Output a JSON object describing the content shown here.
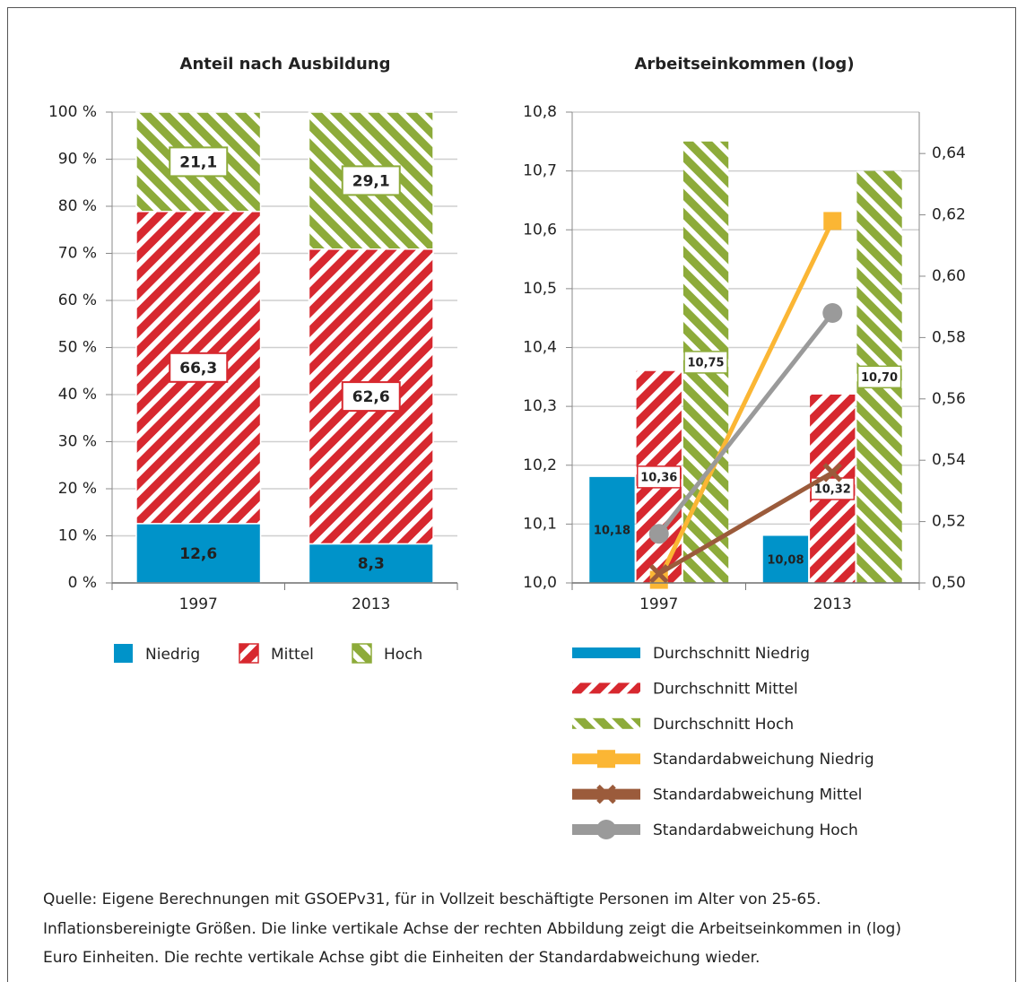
{
  "chart_data": [
    {
      "type": "stacked_bar",
      "title": "Anteil nach Ausbildung",
      "categories": [
        "1997",
        "2013"
      ],
      "series": [
        {
          "name": "Niedrig",
          "color": "#0093c9",
          "hatch": "solid",
          "values": [
            12.6,
            8.3
          ],
          "value_labels": [
            "12,6",
            "8,3"
          ]
        },
        {
          "name": "Mittel",
          "color": "#d7282f",
          "hatch": "diagonal",
          "values": [
            66.3,
            62.6
          ],
          "value_labels": [
            "66,3",
            "62,6"
          ]
        },
        {
          "name": "Hoch",
          "color": "#8dab3a",
          "hatch": "anti-diagonal",
          "values": [
            21.1,
            29.1
          ],
          "value_labels": [
            "21,1",
            "29,1"
          ]
        }
      ],
      "ylim": [
        0,
        100
      ],
      "yticks": [
        {
          "value": 0,
          "label": "0 %"
        },
        {
          "value": 10,
          "label": "10 %"
        },
        {
          "value": 20,
          "label": "20 %"
        },
        {
          "value": 30,
          "label": "30 %"
        },
        {
          "value": 40,
          "label": "40 %"
        },
        {
          "value": 50,
          "label": "50 %"
        },
        {
          "value": 60,
          "label": "60 %"
        },
        {
          "value": 70,
          "label": "70 %"
        },
        {
          "value": 80,
          "label": "80 %"
        },
        {
          "value": 90,
          "label": "90 %"
        },
        {
          "value": 100,
          "label": "100 %"
        }
      ],
      "grid": true,
      "legend": "bottom"
    },
    {
      "type": "bar_line",
      "title": "Arbeitseinkommen (log)",
      "categories": [
        "1997",
        "2013"
      ],
      "series": [
        {
          "name": "Durchschnitt Niedrig",
          "type": "bar",
          "color": "#0093c9",
          "hatch": "solid",
          "values": [
            10.18,
            10.08
          ],
          "value_labels": [
            "10,18",
            "10,08"
          ]
        },
        {
          "name": "Durchschnitt Mittel",
          "type": "bar",
          "color": "#d7282f",
          "hatch": "diagonal",
          "values": [
            10.36,
            10.32
          ],
          "value_labels": [
            "10,36",
            "10,32"
          ]
        },
        {
          "name": "Durchschnitt Hoch",
          "type": "bar",
          "color": "#8dab3a",
          "hatch": "anti-diagonal",
          "values": [
            10.75,
            10.7
          ],
          "value_labels": [
            "10,75",
            "10,70"
          ]
        },
        {
          "name": "Standardabweichung Niedrig",
          "type": "line",
          "axis": "y2",
          "marker": "square",
          "color": "#fbb634",
          "values": [
            0.501,
            0.618
          ]
        },
        {
          "name": "Standardabweichung Mittel",
          "type": "line",
          "axis": "y2",
          "marker": "x",
          "color": "#9b5b3b",
          "values": [
            0.503,
            0.536
          ]
        },
        {
          "name": "Standardabweichung Hoch",
          "type": "line",
          "axis": "y2",
          "marker": "circle",
          "color": "#9a9a9a",
          "values": [
            0.516,
            0.588
          ]
        }
      ],
      "ylim": [
        10.0,
        10.8
      ],
      "yticks": [
        {
          "value": 10.0,
          "label": "10,0"
        },
        {
          "value": 10.1,
          "label": "10,1"
        },
        {
          "value": 10.2,
          "label": "10,2"
        },
        {
          "value": 10.3,
          "label": "10,3"
        },
        {
          "value": 10.4,
          "label": "10,4"
        },
        {
          "value": 10.5,
          "label": "10,5"
        },
        {
          "value": 10.6,
          "label": "10,6"
        },
        {
          "value": 10.7,
          "label": "10,7"
        },
        {
          "value": 10.8,
          "label": "10,8"
        }
      ],
      "y2lim": [
        0.5,
        0.6535
      ],
      "y2ticks": [
        {
          "value": 0.5,
          "label": "0,50"
        },
        {
          "value": 0.52,
          "label": "0,52"
        },
        {
          "value": 0.54,
          "label": "0,54"
        },
        {
          "value": 0.56,
          "label": "0,56"
        },
        {
          "value": 0.58,
          "label": "0,58"
        },
        {
          "value": 0.6,
          "label": "0,60"
        },
        {
          "value": 0.62,
          "label": "0,62"
        },
        {
          "value": 0.64,
          "label": "0,64"
        }
      ],
      "grid": true,
      "legend": "bottom"
    }
  ],
  "notes": [
    "Quelle: Eigene Berechnungen mit GSOEPv31, für in Vollzeit beschäftigte Personen im Alter von 25-65.",
    "Inflationsbereinigte Größen. Die linke vertikale Achse der rechten Abbildung zeigt die Arbeitseinkommen in (log)",
    "Euro Einheiten. Die rechte vertikale Achse gibt die Einheiten der Standardabweichung wieder."
  ]
}
